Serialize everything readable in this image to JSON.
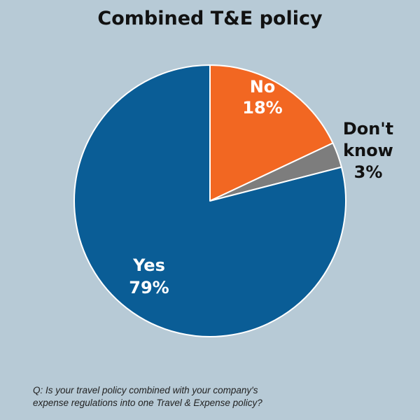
{
  "chart_data": {
    "type": "pie",
    "title": "Combined T&E policy",
    "slices": [
      {
        "label": "No",
        "value": 18,
        "value_label": "18%",
        "color": "#f26722"
      },
      {
        "label": "Don't know",
        "label_lines": [
          "Don't",
          "know"
        ],
        "value": 3,
        "value_label": "3%",
        "color": "#7d7d7d"
      },
      {
        "label": "Yes",
        "value": 79,
        "value_label": "79%",
        "color": "#0a5d96"
      }
    ],
    "start_angle_deg": 0,
    "direction": "clockwise",
    "background": "#b7cad6",
    "slice_border_color": "#ffffff"
  },
  "footnote": {
    "line1": "Q: Is your travel policy combined with your company's",
    "line2": "expense regulations into one Travel & Expense policy?"
  }
}
